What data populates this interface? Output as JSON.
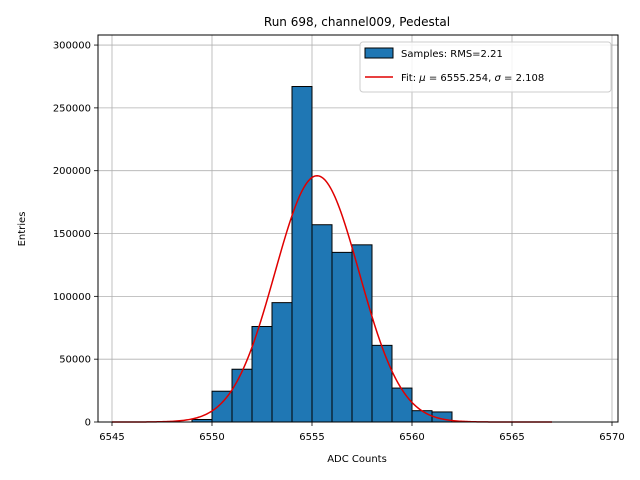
{
  "chart_data": {
    "type": "bar",
    "title": "Run 698, channel009, Pedestal",
    "xlabel": "ADC Counts",
    "ylabel": "Entries",
    "xlim": [
      6544.3,
      6570.3
    ],
    "ylim": [
      0,
      308000
    ],
    "grid": true,
    "legend_position": "top-right",
    "x_ticks": [
      6545,
      6550,
      6555,
      6560,
      6565,
      6570
    ],
    "y_ticks": [
      0,
      50000,
      100000,
      150000,
      200000,
      250000,
      300000
    ],
    "histogram": {
      "name": "Samples: RMS=2.21",
      "color": "#1f77b4",
      "edgecolor": "#000000",
      "bins": [
        {
          "x0": 6549,
          "x1": 6550,
          "count": 2000
        },
        {
          "x0": 6550,
          "x1": 6551,
          "count": 24500
        },
        {
          "x0": 6551,
          "x1": 6552,
          "count": 42000
        },
        {
          "x0": 6552,
          "x1": 6553,
          "count": 76000
        },
        {
          "x0": 6553,
          "x1": 6554,
          "count": 95000
        },
        {
          "x0": 6554,
          "x1": 6555,
          "count": 267000
        },
        {
          "x0": 6555,
          "x1": 6556,
          "count": 157000
        },
        {
          "x0": 6556,
          "x1": 6557,
          "count": 135000
        },
        {
          "x0": 6557,
          "x1": 6558,
          "count": 141000
        },
        {
          "x0": 6558,
          "x1": 6559,
          "count": 61000
        },
        {
          "x0": 6559,
          "x1": 6560,
          "count": 27000
        },
        {
          "x0": 6560,
          "x1": 6561,
          "count": 9000
        },
        {
          "x0": 6561,
          "x1": 6562,
          "count": 8000
        }
      ]
    },
    "fit": {
      "name_prefix": "Fit: ",
      "mu_symbol": "μ",
      "sigma_symbol": "σ",
      "mu": 6555.254,
      "sigma": 2.108,
      "mu_text": "6555.254",
      "sigma_text": "2.108",
      "amplitude": 196000,
      "x_range": [
        6545,
        6567
      ],
      "color": "#e00000"
    }
  }
}
